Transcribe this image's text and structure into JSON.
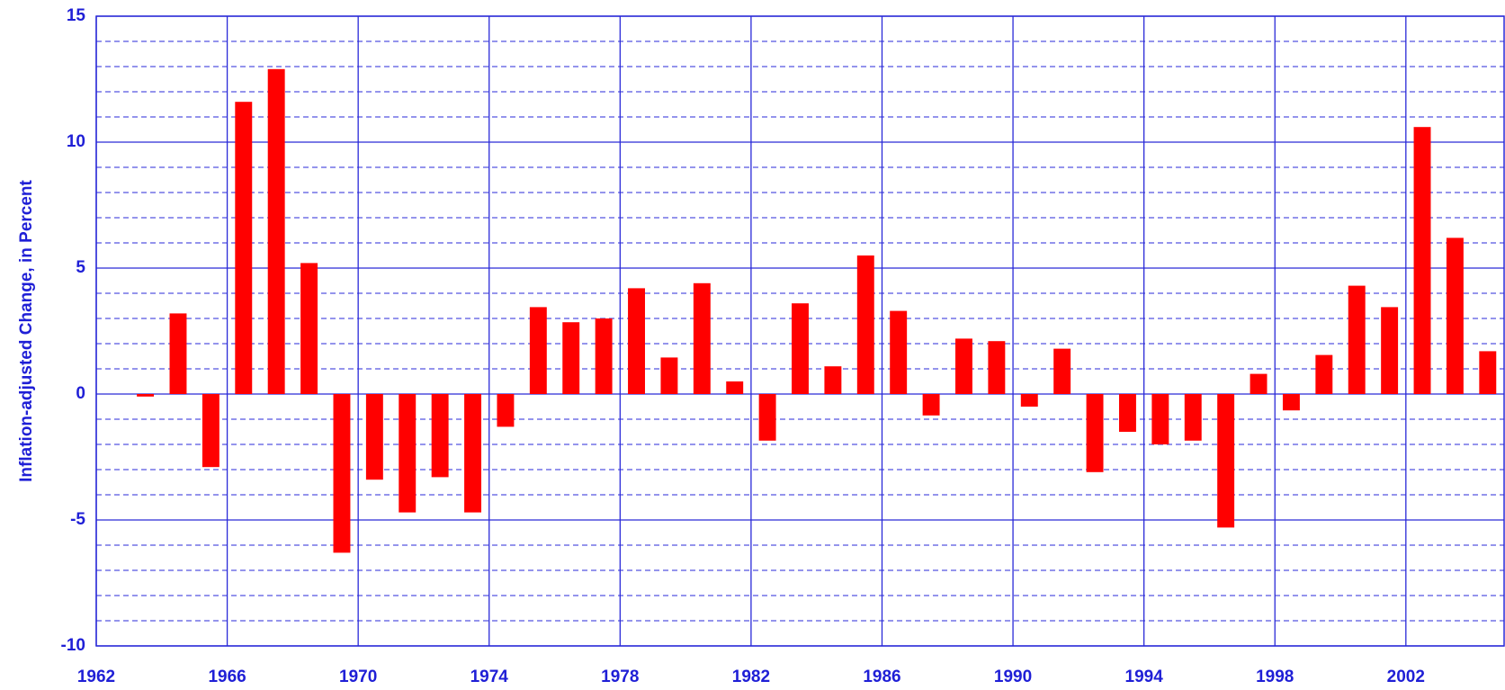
{
  "chart_data": {
    "type": "bar",
    "ylabel": "Inflation-adjusted Change, in Percent",
    "x": [
      1963,
      1964,
      1965,
      1966,
      1967,
      1968,
      1969,
      1970,
      1971,
      1972,
      1973,
      1974,
      1975,
      1976,
      1977,
      1978,
      1979,
      1980,
      1981,
      1982,
      1983,
      1984,
      1985,
      1986,
      1987,
      1988,
      1989,
      1990,
      1991,
      1992,
      1993,
      1994,
      1995,
      1996,
      1997,
      1998,
      1999,
      2000,
      2001,
      2002,
      2003,
      2004
    ],
    "values": [
      -0.1,
      3.2,
      -2.9,
      11.6,
      12.9,
      5.2,
      -6.3,
      -3.4,
      -4.7,
      -3.3,
      -4.7,
      -1.3,
      3.45,
      2.85,
      3.0,
      4.2,
      1.45,
      4.4,
      0.5,
      -1.85,
      3.6,
      1.1,
      5.5,
      3.3,
      -0.85,
      2.2,
      2.1,
      -0.5,
      1.8,
      -3.1,
      -1.5,
      -2.0,
      -1.85,
      -5.3,
      0.8,
      -0.65,
      1.55,
      4.3,
      3.45,
      10.6,
      6.2,
      1.7
    ],
    "color": "#ff0000",
    "xlim": [
      1962,
      2005
    ],
    "xticks": [
      1962,
      1966,
      1970,
      1974,
      1978,
      1982,
      1986,
      1990,
      1994,
      1998,
      2002
    ],
    "ylim": [
      -10,
      15
    ],
    "yticks": [
      -10,
      -5,
      0,
      5,
      10,
      15
    ],
    "minor_yticks": [
      -9,
      -8,
      -7,
      -6,
      -4,
      -3,
      -2,
      -1,
      1,
      2,
      3,
      4,
      6,
      7,
      8,
      9,
      11,
      12,
      13,
      14
    ],
    "grid": true
  }
}
